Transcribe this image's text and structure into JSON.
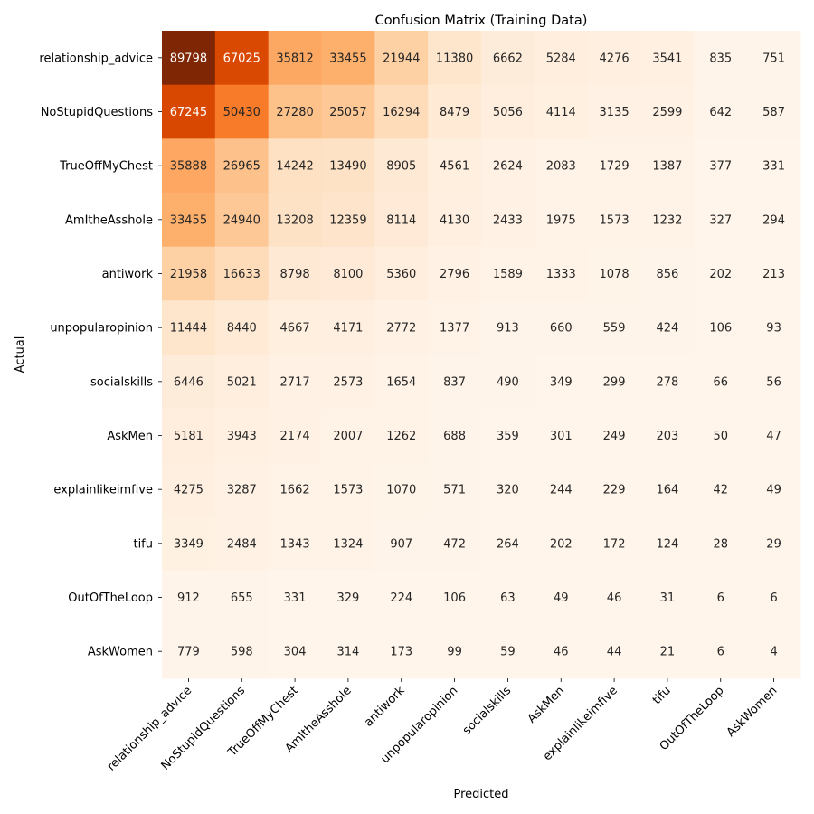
{
  "chart_data": {
    "type": "heatmap",
    "title": "Confusion Matrix (Training Data)",
    "xlabel": "Predicted",
    "ylabel": "Actual",
    "colormap": "Oranges",
    "colorbar": false,
    "x_categories": [
      "relationship_advice",
      "NoStupidQuestions",
      "TrueOffMyChest",
      "AmItheAsshole",
      "antiwork",
      "unpopularopinion",
      "socialskills",
      "AskMen",
      "explainlikeimfive",
      "tifu",
      "OutOfTheLoop",
      "AskWomen"
    ],
    "y_categories": [
      "relationship_advice",
      "NoStupidQuestions",
      "TrueOffMyChest",
      "AmItheAsshole",
      "antiwork",
      "unpopularopinion",
      "socialskills",
      "AskMen",
      "explainlikeimfive",
      "tifu",
      "OutOfTheLoop",
      "AskWomen"
    ],
    "values": [
      [
        89798,
        67025,
        35812,
        33455,
        21944,
        11380,
        6662,
        5284,
        4276,
        3541,
        835,
        751
      ],
      [
        67245,
        50430,
        27280,
        25057,
        16294,
        8479,
        5056,
        4114,
        3135,
        2599,
        642,
        587
      ],
      [
        35888,
        26965,
        14242,
        13490,
        8905,
        4561,
        2624,
        2083,
        1729,
        1387,
        377,
        331
      ],
      [
        33455,
        24940,
        13208,
        12359,
        8114,
        4130,
        2433,
        1975,
        1573,
        1232,
        327,
        294
      ],
      [
        21958,
        16633,
        8798,
        8100,
        5360,
        2796,
        1589,
        1333,
        1078,
        856,
        202,
        213
      ],
      [
        11444,
        8440,
        4667,
        4171,
        2772,
        1377,
        913,
        660,
        559,
        424,
        106,
        93
      ],
      [
        6446,
        5021,
        2717,
        2573,
        1654,
        837,
        490,
        349,
        299,
        278,
        66,
        56
      ],
      [
        5181,
        3943,
        2174,
        2007,
        1262,
        688,
        359,
        301,
        249,
        203,
        50,
        47
      ],
      [
        4275,
        3287,
        1662,
        1573,
        1070,
        571,
        320,
        244,
        229,
        164,
        42,
        49
      ],
      [
        3349,
        2484,
        1343,
        1324,
        907,
        472,
        264,
        202,
        172,
        124,
        28,
        29
      ],
      [
        912,
        655,
        331,
        329,
        224,
        106,
        63,
        49,
        46,
        31,
        6,
        6
      ],
      [
        779,
        598,
        304,
        314,
        173,
        99,
        59,
        46,
        44,
        21,
        6,
        4
      ]
    ]
  }
}
